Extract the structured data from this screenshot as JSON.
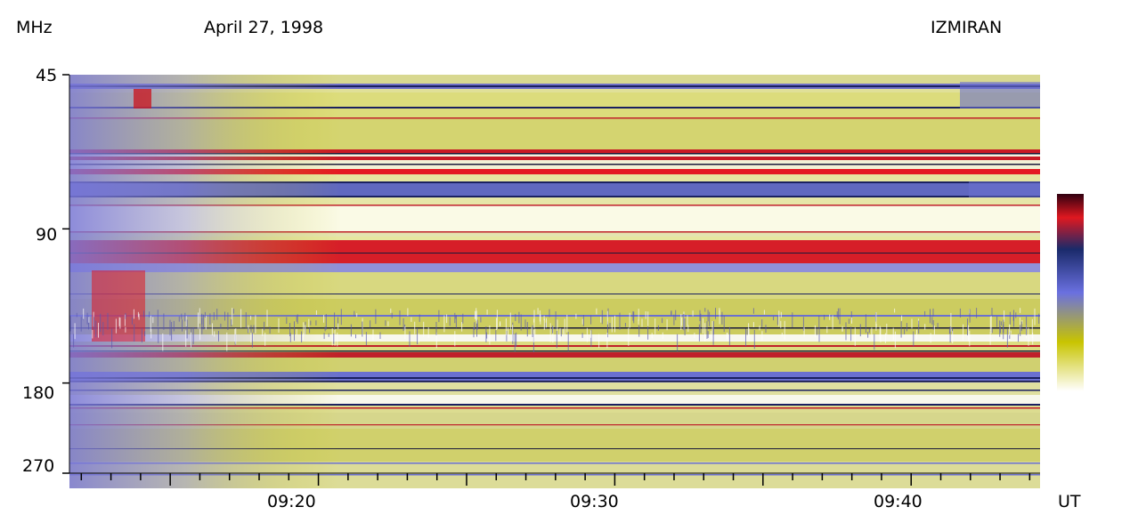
{
  "chart_data": {
    "type": "heatmap",
    "title": "April 27, 1998",
    "source": "IZMIRAN",
    "ylabel": "MHz",
    "xlabel": "UT",
    "y_scale": "log",
    "ylim": [
      45,
      270
    ],
    "y_ticks": [
      "45",
      "90",
      "180",
      "270"
    ],
    "x_range": [
      "09:12",
      "09:44"
    ],
    "x_ticks": [
      "09:20",
      "09:30",
      "09:40"
    ],
    "colormap": [
      "#ffffff",
      "#c8c400",
      "#6a70e0",
      "#1a2a6a",
      "#e01820",
      "#300010"
    ],
    "grid": false,
    "legend": "colorbar right"
  }
}
